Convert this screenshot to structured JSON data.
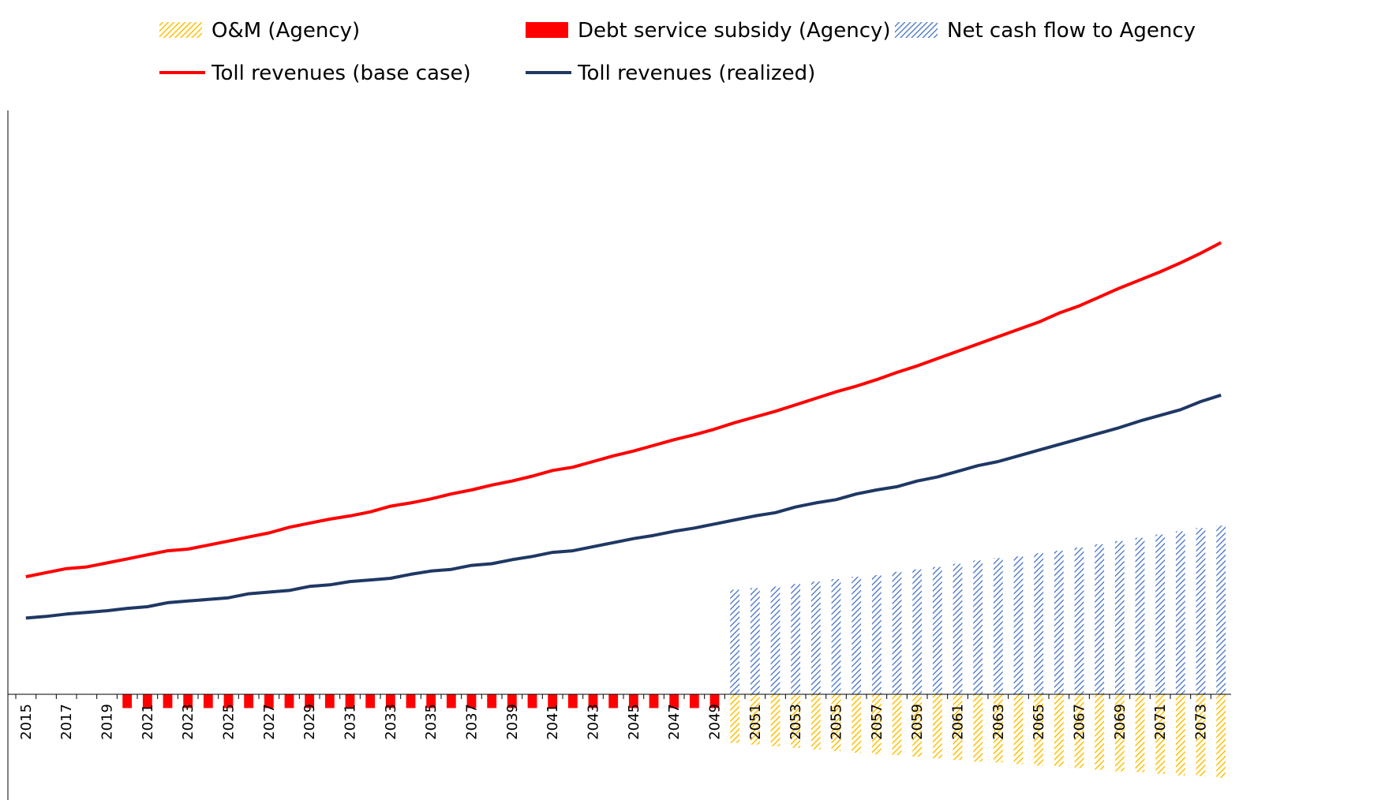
{
  "chart_data": {
    "type": "bar+line",
    "title": "",
    "xlabel": "",
    "ylabel": "",
    "x_start": 2015,
    "x_end": 2074,
    "tick_labels": [
      "2015",
      "2017",
      "2019",
      "2021",
      "2023",
      "2025",
      "2027",
      "2029",
      "2031",
      "2033",
      "2035",
      "2037",
      "2039",
      "2041",
      "2043",
      "2045",
      "2047",
      "2049",
      "2051",
      "2053",
      "2055",
      "2057",
      "2059",
      "2061",
      "2063",
      "2065",
      "2067",
      "2069",
      "2071",
      "2073"
    ],
    "ylim": [
      -120,
      720
    ],
    "y_axis_labels_shown": false,
    "grid": false,
    "legend": {
      "position": "top",
      "items": [
        {
          "label": "O&M (Agency)",
          "kind": "hatched-bar",
          "color": "#FFC000"
        },
        {
          "label": "Debt service subsidy (Agency)",
          "kind": "bar",
          "color": "#FF0000"
        },
        {
          "label": "Net cash flow to Agency",
          "kind": "hatched-bar",
          "color": "#4472C4"
        },
        {
          "label": "Toll revenues (base case)",
          "kind": "line",
          "color": "#FF0000"
        },
        {
          "label": "Toll revenues (realized)",
          "kind": "line",
          "color": "#1F3864"
        }
      ]
    },
    "series": [
      {
        "name": "Toll revenues (base case)",
        "type": "line",
        "color": "#FF0000",
        "x": [
          2015,
          2016,
          2017,
          2018,
          2019,
          2020,
          2021,
          2022,
          2023,
          2024,
          2025,
          2026,
          2027,
          2028,
          2029,
          2030,
          2031,
          2032,
          2033,
          2034,
          2035,
          2036,
          2037,
          2038,
          2039,
          2040,
          2041,
          2042,
          2043,
          2044,
          2045,
          2046,
          2047,
          2048,
          2049,
          2050,
          2051,
          2052,
          2053,
          2054,
          2055,
          2056,
          2057,
          2058,
          2059,
          2060,
          2061,
          2062,
          2063,
          2064,
          2065,
          2066,
          2067,
          2068,
          2069,
          2070,
          2071,
          2072,
          2073,
          2074
        ],
        "values": [
          145,
          150,
          155,
          157,
          162,
          167,
          172,
          177,
          179,
          184,
          189,
          194,
          199,
          206,
          211,
          216,
          220,
          225,
          232,
          236,
          241,
          247,
          252,
          258,
          263,
          269,
          276,
          280,
          287,
          294,
          300,
          307,
          314,
          320,
          327,
          335,
          342,
          349,
          357,
          365,
          373,
          380,
          388,
          397,
          405,
          414,
          423,
          432,
          441,
          450,
          459,
          470,
          479,
          490,
          501,
          511,
          521,
          532,
          544,
          557
        ]
      },
      {
        "name": "Toll revenues (realized)",
        "type": "line",
        "color": "#1F3864",
        "x": [
          2015,
          2016,
          2017,
          2018,
          2019,
          2020,
          2021,
          2022,
          2023,
          2024,
          2025,
          2026,
          2027,
          2028,
          2029,
          2030,
          2031,
          2032,
          2033,
          2034,
          2035,
          2036,
          2037,
          2038,
          2039,
          2040,
          2041,
          2042,
          2043,
          2044,
          2045,
          2046,
          2047,
          2048,
          2049,
          2050,
          2051,
          2052,
          2053,
          2054,
          2055,
          2056,
          2057,
          2058,
          2059,
          2060,
          2061,
          2062,
          2063,
          2064,
          2065,
          2066,
          2067,
          2068,
          2069,
          2070,
          2071,
          2072,
          2073,
          2074
        ],
        "values": [
          94,
          96,
          99,
          101,
          103,
          106,
          108,
          113,
          115,
          117,
          119,
          124,
          126,
          128,
          133,
          135,
          139,
          141,
          143,
          148,
          152,
          154,
          159,
          161,
          166,
          170,
          175,
          177,
          182,
          187,
          192,
          196,
          201,
          205,
          210,
          215,
          220,
          224,
          231,
          236,
          240,
          247,
          252,
          256,
          263,
          268,
          275,
          282,
          287,
          294,
          301,
          308,
          315,
          322,
          329,
          337,
          344,
          351,
          361,
          369
        ]
      },
      {
        "name": "Debt service subsidy (Agency)",
        "type": "bar",
        "color": "#FF0000",
        "x": [
          2020,
          2021,
          2022,
          2023,
          2024,
          2025,
          2026,
          2027,
          2028,
          2029,
          2030,
          2031,
          2032,
          2033,
          2034,
          2035,
          2036,
          2037,
          2038,
          2039,
          2040,
          2041,
          2042,
          2043,
          2044,
          2045,
          2046,
          2047,
          2048,
          2049
        ],
        "values": [
          -17,
          -17,
          -17,
          -17,
          -17,
          -17,
          -17,
          -17,
          -17,
          -17,
          -17,
          -17,
          -17,
          -17,
          -17,
          -17,
          -17,
          -17,
          -17,
          -17,
          -17,
          -17,
          -17,
          -17,
          -17,
          -17,
          -17,
          -17,
          -17,
          -17
        ]
      },
      {
        "name": "O&M (Agency)",
        "type": "bar",
        "color": "#FFC000",
        "x": [
          2050,
          2051,
          2052,
          2053,
          2054,
          2055,
          2056,
          2057,
          2058,
          2059,
          2060,
          2061,
          2062,
          2063,
          2064,
          2065,
          2066,
          2067,
          2068,
          2069,
          2070,
          2071,
          2072,
          2073,
          2074
        ],
        "values": [
          -60,
          -62,
          -64,
          -66,
          -68,
          -70,
          -72,
          -74,
          -75,
          -77,
          -79,
          -81,
          -83,
          -84,
          -86,
          -88,
          -89,
          -91,
          -93,
          -95,
          -96,
          -98,
          -100,
          -101,
          -103
        ]
      },
      {
        "name": "Net cash flow to Agency",
        "type": "bar",
        "color": "#4472C4",
        "x": [
          2050,
          2051,
          2052,
          2053,
          2054,
          2055,
          2056,
          2057,
          2058,
          2059,
          2060,
          2061,
          2062,
          2063,
          2064,
          2065,
          2066,
          2067,
          2068,
          2069,
          2070,
          2071,
          2072,
          2073,
          2074
        ],
        "values": [
          129,
          131,
          133,
          136,
          139,
          142,
          145,
          147,
          151,
          154,
          157,
          161,
          165,
          168,
          170,
          174,
          177,
          181,
          185,
          189,
          193,
          197,
          201,
          205,
          208
        ]
      }
    ]
  }
}
